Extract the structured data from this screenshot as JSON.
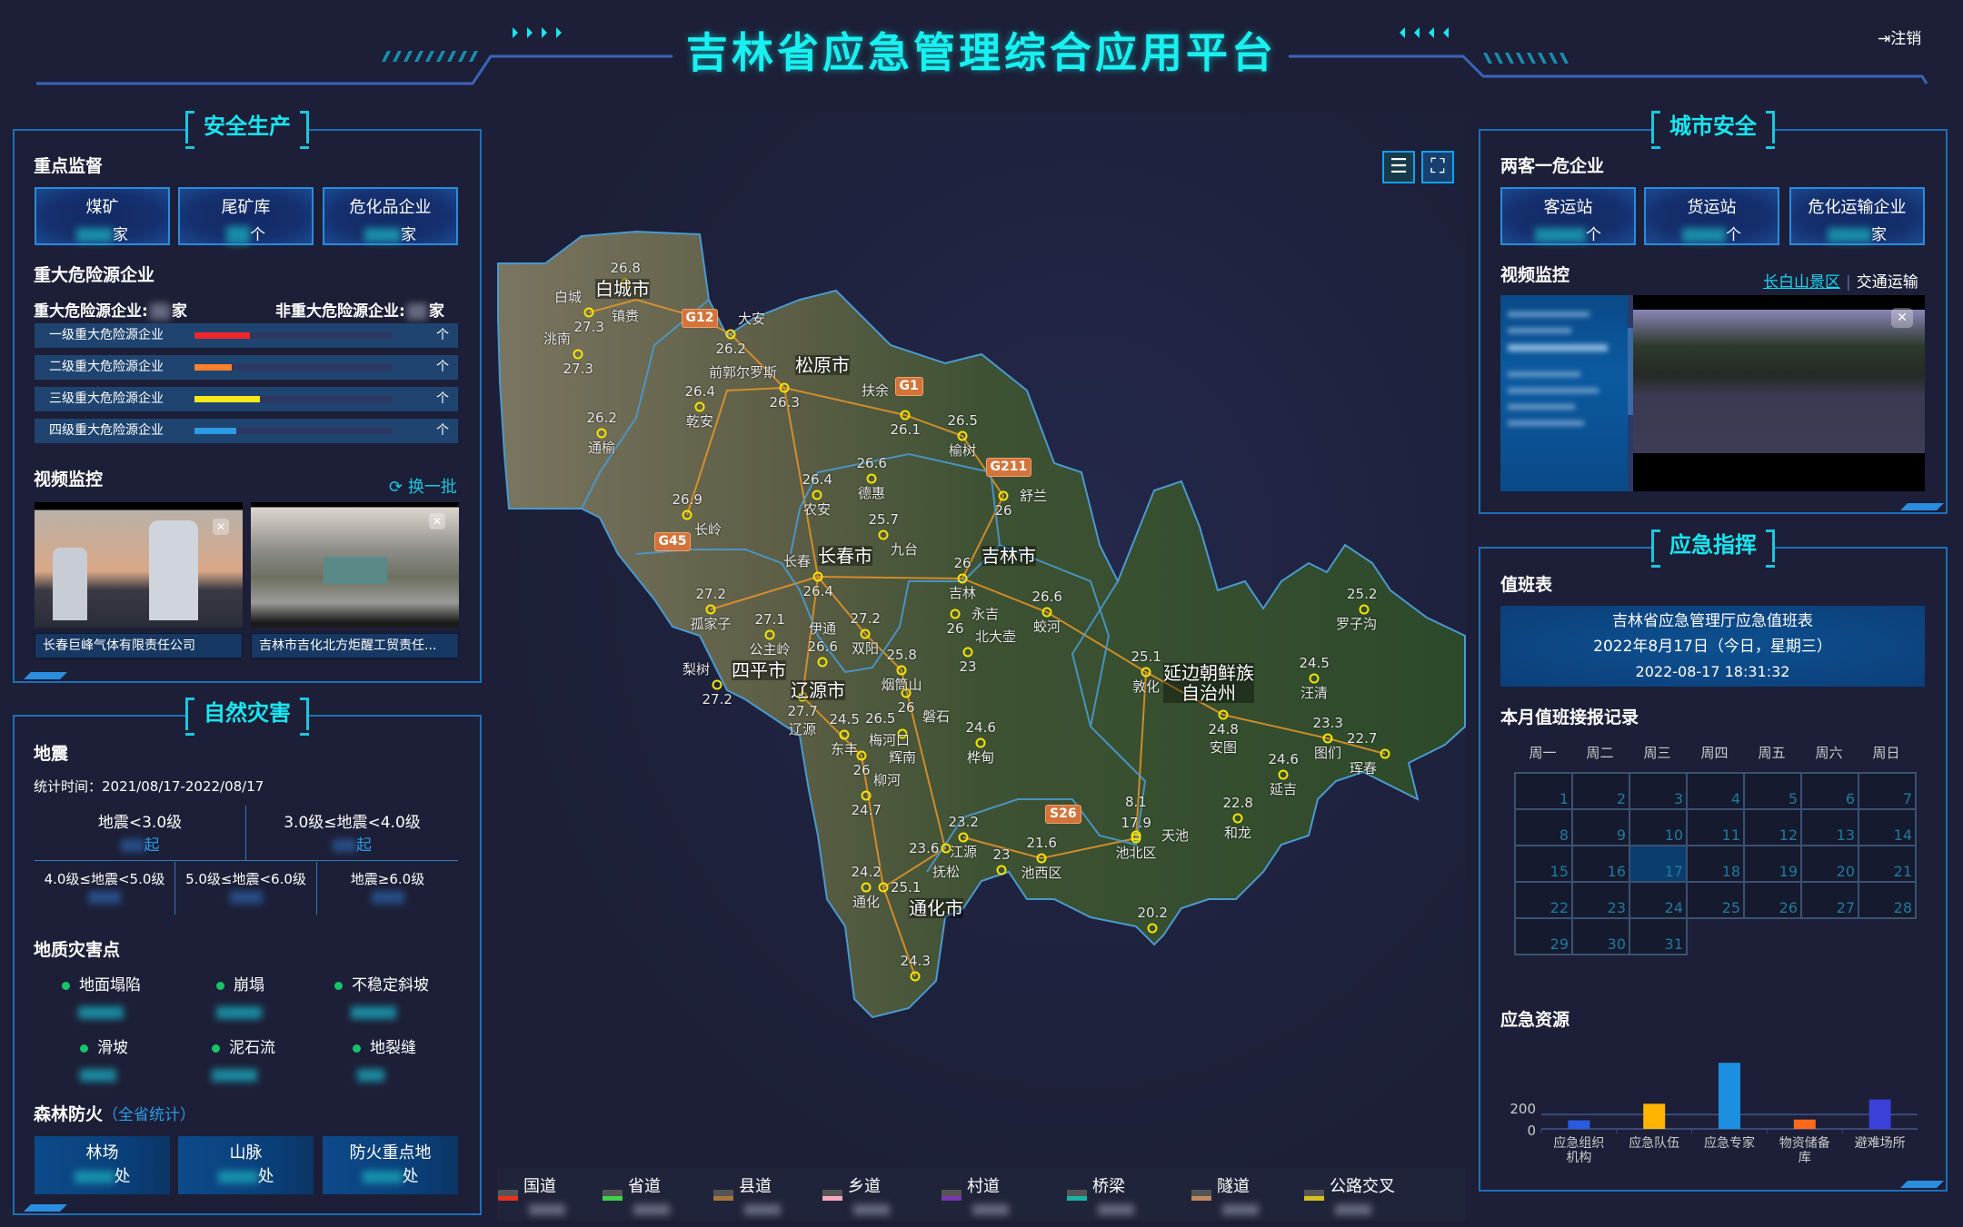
{
  "header": {
    "title": "吉林省应急管理综合应用平台",
    "logout": "注销",
    "logout_icon": "logout-icon"
  },
  "left": {
    "safety": {
      "title": "安全生产",
      "key_supervision": {
        "title": "重点监督",
        "cards": [
          {
            "label": "煤矿",
            "unit": "家"
          },
          {
            "label": "尾矿库",
            "unit": "个"
          },
          {
            "label": "危化品企业",
            "unit": "家"
          }
        ]
      },
      "hazard": {
        "title": "重大危险源企业",
        "major_label": "重大危险源企业:",
        "major_unit": "家",
        "nonmajor_label": "非重大危险源企业:",
        "nonmajor_unit": "家",
        "rows": [
          {
            "label": "一级重大危险源企业",
            "fraction": 0.28,
            "color": "#f0262a",
            "unit": "个"
          },
          {
            "label": "二级重大危险源企业",
            "fraction": 0.19,
            "color": "#ff7f2a",
            "unit": "个"
          },
          {
            "label": "三级重大危险源企业",
            "fraction": 0.33,
            "color": "#f8e71c",
            "unit": "个"
          },
          {
            "label": "四级重大危险源企业",
            "fraction": 0.21,
            "color": "#2d9ae6",
            "unit": "个"
          }
        ]
      },
      "video": {
        "title": "视频监控",
        "refresh": "换一批",
        "items": [
          {
            "caption": "长春巨峰气体有限责任公司"
          },
          {
            "caption": "吉林市吉化北方炬醒工贸责任..."
          }
        ]
      }
    },
    "disaster": {
      "title": "自然灾害",
      "quake": {
        "title": "地震",
        "period": "统计时间：2021/08/17-2022/08/17",
        "unit": "起",
        "levels": [
          "地震<3.0级",
          "3.0级≤地震<4.0级",
          "4.0级≤地震<5.0级",
          "5.0级≤地震<6.0级",
          "地震≥6.0级"
        ]
      },
      "geo": {
        "title": "地质灾害点",
        "items": [
          "地面塌陷",
          "崩塌",
          "不稳定斜坡",
          "滑坡",
          "泥石流",
          "地裂缝"
        ]
      },
      "fire": {
        "title": "森林防火",
        "note": "（全省统计）",
        "cards": [
          {
            "label": "林场",
            "unit": "处"
          },
          {
            "label": "山脉",
            "unit": "处"
          },
          {
            "label": "防火重点地",
            "unit": "处"
          }
        ]
      }
    }
  },
  "map": {
    "buttons": {
      "list": "menu-icon",
      "fullscreen": "fullscreen-icon"
    },
    "cities": [
      "白城市",
      "松原市",
      "长春市",
      "吉林市",
      "四平市",
      "辽源市",
      "通化市",
      "延边朝鲜族\n自治州"
    ],
    "points": [
      {
        "name": "镇赉",
        "value": "26.8"
      },
      {
        "name": "白城",
        "value": "27.3"
      },
      {
        "name": "洮南",
        "value": "27.3"
      },
      {
        "name": "大安",
        "value": "26.2"
      },
      {
        "name": "前郭尔罗斯",
        "value": "26.3"
      },
      {
        "name": "乾安",
        "value": "26.4"
      },
      {
        "name": "通榆",
        "value": "26.2"
      },
      {
        "name": "扶余",
        "value": "26.1"
      },
      {
        "name": "榆树",
        "value": "26.5"
      },
      {
        "name": "德惠",
        "value": "26.6"
      },
      {
        "name": "农安",
        "value": "26.4"
      },
      {
        "name": "长岭",
        "value": "26.9"
      },
      {
        "name": "九台",
        "value": "25.7"
      },
      {
        "name": "长春",
        "value": "26.4"
      },
      {
        "name": "孤家子",
        "value": "27.2"
      },
      {
        "name": "公主岭",
        "value": "27.1"
      },
      {
        "name": "双阳",
        "value": "27.2"
      },
      {
        "name": "伊通",
        "value": "26.6"
      },
      {
        "name": "梨树",
        "value": "27.2"
      },
      {
        "name": "烟筒山",
        "value": "25.8"
      },
      {
        "name": "吉林",
        "value": "26"
      },
      {
        "name": "永吉",
        "value": "26"
      },
      {
        "name": "北大壶",
        "value": "23"
      },
      {
        "name": "舒兰",
        "value": "26"
      },
      {
        "name": "蛟河",
        "value": "26.6"
      },
      {
        "name": "敦化",
        "value": "25.1"
      },
      {
        "name": "安图",
        "value": "24.8"
      },
      {
        "name": "罗子沟",
        "value": "25.2"
      },
      {
        "name": "汪清",
        "value": "24.5"
      },
      {
        "name": "图们",
        "value": "23.3"
      },
      {
        "name": "延吉",
        "value": "24.6"
      },
      {
        "name": "珲春",
        "value": "22.7"
      },
      {
        "name": "和龙",
        "value": "22.8"
      },
      {
        "name": "池北区",
        "value": "17.9"
      },
      {
        "name": "桦甸",
        "value": "24.6"
      },
      {
        "name": "池西区",
        "value": "21.6"
      },
      {
        "name": "辽源",
        "value": "27.7"
      },
      {
        "name": "东丰",
        "value": "24.5"
      },
      {
        "name": "梅河口",
        "value": "26"
      },
      {
        "name": "磐石",
        "value": "26"
      },
      {
        "name": "辉南",
        "value": "26.5"
      },
      {
        "name": "柳河",
        "value": "24.7"
      },
      {
        "name": "江源",
        "value": "23.2"
      },
      {
        "name": "抚松",
        "value": "23.6"
      },
      {
        "name": "天池",
        "value": "8.1"
      },
      {
        "name": "",
        "value": "23"
      },
      {
        "name": "通化",
        "value": "24.2"
      },
      {
        "name": "",
        "value": "25.1"
      },
      {
        "name": "",
        "value": "24.3"
      },
      {
        "name": "",
        "value": "20.2"
      }
    ],
    "shields": [
      "G12",
      "G1",
      "G211",
      "G45",
      "S26"
    ],
    "legend": [
      {
        "label": "国道",
        "color": "#e8321e"
      },
      {
        "label": "省道",
        "color": "#3fd24a"
      },
      {
        "label": "县道",
        "color": "#a8753a"
      },
      {
        "label": "乡道",
        "color": "#f5a8c0"
      },
      {
        "label": "村道",
        "color": "#7a35b0"
      },
      {
        "label": "桥梁",
        "color": "#16b5a8"
      },
      {
        "label": "隧道",
        "color": "#c08a60"
      },
      {
        "label": "公路交叉",
        "color": "#d8c020"
      }
    ]
  },
  "right": {
    "city": {
      "title": "城市安全",
      "enterprise": {
        "title": "两客一危企业",
        "cards": [
          {
            "label": "客运站",
            "unit": "个"
          },
          {
            "label": "货运站",
            "unit": "个"
          },
          {
            "label": "危化运输企业",
            "unit": "家"
          }
        ]
      },
      "video": {
        "title": "视频监控",
        "tabs": [
          {
            "label": "长白山景区",
            "active": true
          },
          {
            "label": "交通运输",
            "active": false
          }
        ]
      }
    },
    "command": {
      "title": "应急指挥",
      "duty": {
        "title": "值班表",
        "lines": [
          "吉林省应急管理厅应急值班表",
          "2022年8月17日（今日，星期三）",
          "2022-08-17 18:31:32"
        ]
      },
      "calendar": {
        "title": "本月值班接报记录",
        "weekdays": [
          "周一",
          "周二",
          "周三",
          "周四",
          "周五",
          "周六",
          "周日"
        ],
        "days": 31,
        "first_weekday_index": 0,
        "today": 17
      },
      "resources": {
        "title": "应急资源"
      }
    }
  },
  "chart_data": {
    "type": "bar",
    "categories": [
      "应急组织\n机构",
      "应急队伍",
      "应急专家",
      "物资储备\n库",
      "避难场所"
    ],
    "values": [
      120,
      350,
      920,
      130,
      410
    ],
    "colors": [
      "#2a5ae0",
      "#ffb400",
      "#1c8fe0",
      "#ff6a1a",
      "#3a40d8"
    ],
    "yticks": [
      "0",
      "200"
    ],
    "ylim": [
      0,
      1200
    ]
  }
}
